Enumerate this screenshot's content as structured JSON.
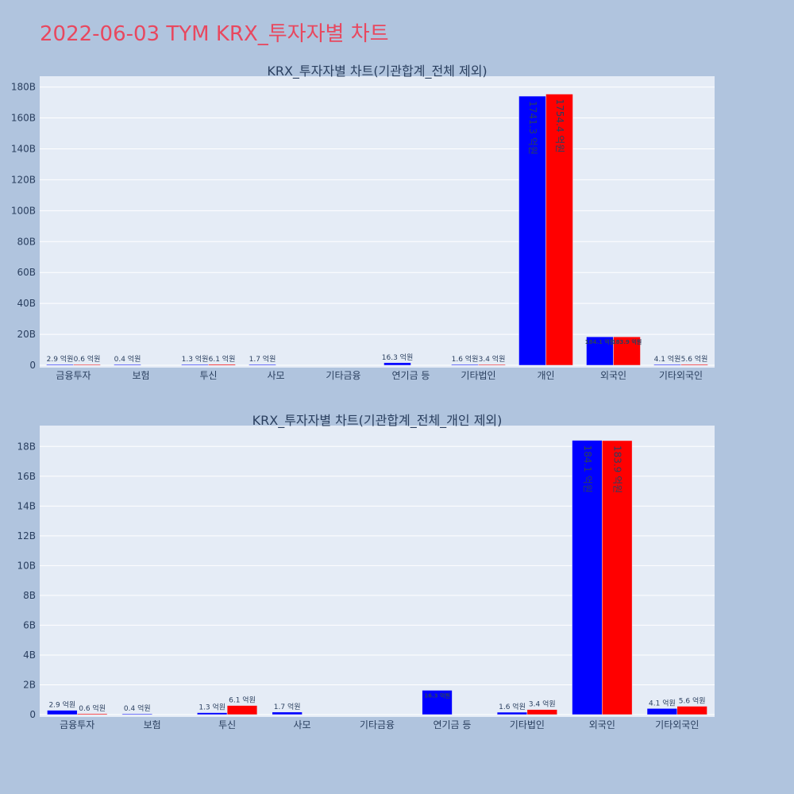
{
  "title": "2022-06-03 TYM KRX_투자자별 차트",
  "colors": {
    "buy": "#0000ff",
    "sell": "#ff0000",
    "background": "#b0c4de",
    "plot_bg": "#e5ecf6",
    "title": "#e8485f"
  },
  "chart_data": [
    {
      "type": "bar",
      "title": "KRX_투자자별 차트(기관합계_전체 제외)",
      "categories": [
        "금융투자",
        "보험",
        "투신",
        "사모",
        "기타금융",
        "연기금 등",
        "기타법인",
        "개인",
        "외국인",
        "기타외국인"
      ],
      "series": [
        {
          "values": [
            290000000,
            40000000,
            130000000,
            170000000,
            0,
            1630000000,
            160000000,
            174130000000,
            18410000000,
            410000000
          ],
          "labels": [
            "2.9 억원",
            "0.4 억원",
            "1.3 억원",
            "1.7 억원",
            "",
            "16.3 억원",
            "1.6 억원",
            "1741.3 억원",
            "184.1 억원",
            "4.1 억원"
          ]
        },
        {
          "values": [
            60000000,
            0,
            610000000,
            0,
            0,
            0,
            340000000,
            175440000000,
            18390000000,
            560000000
          ],
          "labels": [
            "0.6 억원",
            "",
            "6.1 억원",
            "",
            "",
            "",
            "3.4 억원",
            "1754.4 억원",
            "183.9 억원",
            "5.6 억원"
          ]
        }
      ],
      "ylim": [
        0,
        187000000000
      ],
      "yticks": [
        0,
        20000000000,
        40000000000,
        60000000000,
        80000000000,
        100000000000,
        120000000000,
        140000000000,
        160000000000,
        180000000000
      ],
      "ytick_labels": [
        "0",
        "20B",
        "40B",
        "60B",
        "80B",
        "100B",
        "120B",
        "140B",
        "160B",
        "180B"
      ],
      "grid": true
    },
    {
      "type": "bar",
      "title": "KRX_투자자별 차트(기관합계_전체_개인 제외)",
      "categories": [
        "금융투자",
        "보험",
        "투신",
        "사모",
        "기타금융",
        "연기금 등",
        "기타법인",
        "외국인",
        "기타외국인"
      ],
      "series": [
        {
          "values": [
            290000000,
            40000000,
            130000000,
            170000000,
            0,
            1630000000,
            160000000,
            18410000000,
            410000000
          ],
          "labels": [
            "2.9 억원",
            "0.4 억원",
            "1.3 억원",
            "1.7 억원",
            "",
            "16.3 억원",
            "1.6 억원",
            "184.1 억원",
            "4.1 억원"
          ]
        },
        {
          "values": [
            60000000,
            0,
            610000000,
            0,
            0,
            0,
            340000000,
            18390000000,
            560000000
          ],
          "labels": [
            "0.6 억원",
            "",
            "6.1 억원",
            "",
            "",
            "",
            "3.4 억원",
            "183.9 억원",
            "5.6 억원"
          ]
        }
      ],
      "ylim": [
        0,
        19400000000
      ],
      "yticks": [
        0,
        2000000000,
        4000000000,
        6000000000,
        8000000000,
        10000000000,
        12000000000,
        14000000000,
        16000000000,
        18000000000
      ],
      "ytick_labels": [
        "0",
        "2B",
        "4B",
        "6B",
        "8B",
        "10B",
        "12B",
        "14B",
        "16B",
        "18B"
      ],
      "grid": true
    }
  ]
}
